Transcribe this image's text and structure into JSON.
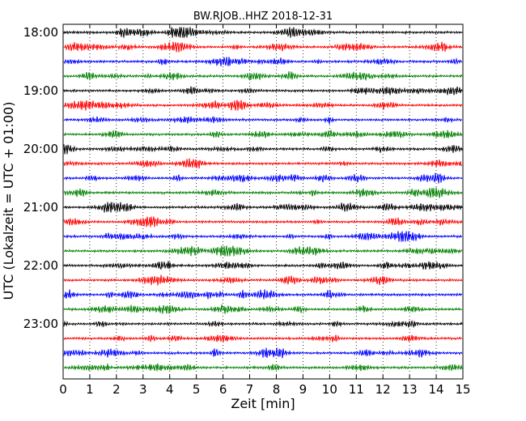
{
  "chart_data": {
    "type": "line",
    "title": "BW.RJOB..HHZ 2018-12-31",
    "xlabel": "Zeit  [min]",
    "ylabel": "UTC (Lokalzeit = UTC + 01:00)",
    "xlim": [
      0,
      15
    ],
    "x_ticks": [
      "0",
      "1",
      "2",
      "3",
      "4",
      "5",
      "6",
      "7",
      "8",
      "9",
      "10",
      "11",
      "12",
      "13",
      "14",
      "15"
    ],
    "y_tick_labels": [
      "18:00",
      "19:00",
      "20:00",
      "21:00",
      "22:00",
      "23:00"
    ],
    "grid": "vertical dotted",
    "trace_interval_minutes": 15,
    "start_time": "18:00",
    "trace_count": 24,
    "trace_colors": [
      "#000000",
      "#ff0000",
      "#0000ff",
      "#008000"
    ]
  }
}
